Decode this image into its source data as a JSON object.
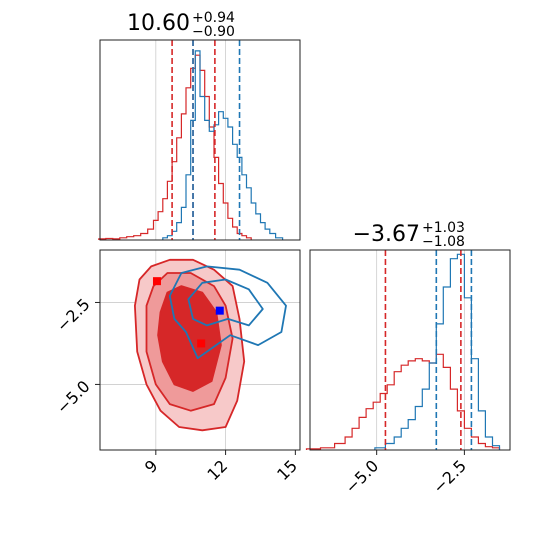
{
  "chart_data": {
    "type": "corner",
    "colors": {
      "red": "#d62728",
      "blue": "#1f77b4",
      "red_fill_mid": "#ef9a9a",
      "red_fill_light": "#f7c9c9"
    },
    "panels": {
      "hist_x": {
        "title": {
          "value": "10.60",
          "plus": "+0.94",
          "minus": "−0.90"
        },
        "xlim": [
          6.6,
          15.2
        ],
        "red_quantiles": [
          9.7,
          10.6,
          11.54
        ],
        "blue_quantiles": [
          10.6,
          12.6
        ],
        "red_hist": [
          {
            "x": 6.7,
            "y": 0.5
          },
          {
            "x": 7.0,
            "y": 0.7
          },
          {
            "x": 7.3,
            "y": 0.5
          },
          {
            "x": 7.6,
            "y": 1
          },
          {
            "x": 7.9,
            "y": 1.5
          },
          {
            "x": 8.2,
            "y": 2
          },
          {
            "x": 8.5,
            "y": 3
          },
          {
            "x": 8.8,
            "y": 5
          },
          {
            "x": 9.0,
            "y": 9
          },
          {
            "x": 9.2,
            "y": 13
          },
          {
            "x": 9.4,
            "y": 19
          },
          {
            "x": 9.6,
            "y": 27
          },
          {
            "x": 9.8,
            "y": 36
          },
          {
            "x": 10.0,
            "y": 47
          },
          {
            "x": 10.2,
            "y": 58
          },
          {
            "x": 10.4,
            "y": 70
          },
          {
            "x": 10.6,
            "y": 79
          },
          {
            "x": 10.8,
            "y": 85
          },
          {
            "x": 11.0,
            "y": 78
          },
          {
            "x": 11.2,
            "y": 66
          },
          {
            "x": 11.4,
            "y": 52
          },
          {
            "x": 11.6,
            "y": 38
          },
          {
            "x": 11.8,
            "y": 26
          },
          {
            "x": 12.0,
            "y": 17
          },
          {
            "x": 12.2,
            "y": 10
          },
          {
            "x": 12.4,
            "y": 6
          },
          {
            "x": 12.6,
            "y": 3
          },
          {
            "x": 12.8,
            "y": 2
          },
          {
            "x": 13.0,
            "y": 1
          }
        ],
        "blue_hist": [
          {
            "x": 9.4,
            "y": 1
          },
          {
            "x": 9.6,
            "y": 2
          },
          {
            "x": 9.8,
            "y": 4
          },
          {
            "x": 10.0,
            "y": 8
          },
          {
            "x": 10.2,
            "y": 15
          },
          {
            "x": 10.4,
            "y": 30
          },
          {
            "x": 10.6,
            "y": 55
          },
          {
            "x": 10.8,
            "y": 87
          },
          {
            "x": 11.0,
            "y": 66
          },
          {
            "x": 11.2,
            "y": 55
          },
          {
            "x": 11.4,
            "y": 50
          },
          {
            "x": 11.6,
            "y": 53
          },
          {
            "x": 11.8,
            "y": 59
          },
          {
            "x": 12.0,
            "y": 56
          },
          {
            "x": 12.2,
            "y": 52
          },
          {
            "x": 12.4,
            "y": 44
          },
          {
            "x": 12.6,
            "y": 38
          },
          {
            "x": 12.8,
            "y": 30
          },
          {
            "x": 13.0,
            "y": 24
          },
          {
            "x": 13.2,
            "y": 17
          },
          {
            "x": 13.4,
            "y": 12
          },
          {
            "x": 13.6,
            "y": 8
          },
          {
            "x": 13.8,
            "y": 5
          },
          {
            "x": 14.0,
            "y": 3
          },
          {
            "x": 14.3,
            "y": 1
          }
        ]
      },
      "hist_y": {
        "title": {
          "value": "−3.67",
          "plus": "+1.03",
          "minus": "−1.08"
        },
        "xlim": [
          -6.9,
          -1.2
        ],
        "xticks": [
          -5.0,
          -2.5
        ],
        "xticklabels": [
          "−5.0",
          "−2.5"
        ],
        "red_quantiles": [
          -4.75,
          -2.6
        ],
        "blue_quantiles": [
          -3.3,
          -2.3
        ],
        "red_hist": [
          {
            "x": -6.8,
            "y": 0.5
          },
          {
            "x": -6.4,
            "y": 1
          },
          {
            "x": -6.0,
            "y": 3
          },
          {
            "x": -5.8,
            "y": 6
          },
          {
            "x": -5.6,
            "y": 10
          },
          {
            "x": -5.4,
            "y": 15
          },
          {
            "x": -5.2,
            "y": 19
          },
          {
            "x": -5.0,
            "y": 22
          },
          {
            "x": -4.8,
            "y": 26
          },
          {
            "x": -4.6,
            "y": 30
          },
          {
            "x": -4.4,
            "y": 36
          },
          {
            "x": -4.2,
            "y": 39
          },
          {
            "x": -4.0,
            "y": 41
          },
          {
            "x": -3.8,
            "y": 42
          },
          {
            "x": -3.6,
            "y": 41
          },
          {
            "x": -3.4,
            "y": 40
          },
          {
            "x": -3.2,
            "y": 44
          },
          {
            "x": -3.0,
            "y": 38
          },
          {
            "x": -2.8,
            "y": 28
          },
          {
            "x": -2.6,
            "y": 18
          },
          {
            "x": -2.4,
            "y": 10
          },
          {
            "x": -2.2,
            "y": 6
          },
          {
            "x": -2.0,
            "y": 3
          },
          {
            "x": -1.8,
            "y": 1.5
          },
          {
            "x": -1.6,
            "y": 1
          }
        ],
        "blue_hist": [
          {
            "x": -4.9,
            "y": 1
          },
          {
            "x": -4.6,
            "y": 3
          },
          {
            "x": -4.4,
            "y": 6
          },
          {
            "x": -4.2,
            "y": 10
          },
          {
            "x": -4.0,
            "y": 14
          },
          {
            "x": -3.8,
            "y": 20
          },
          {
            "x": -3.6,
            "y": 28
          },
          {
            "x": -3.4,
            "y": 40
          },
          {
            "x": -3.2,
            "y": 58
          },
          {
            "x": -3.0,
            "y": 75
          },
          {
            "x": -2.8,
            "y": 88
          },
          {
            "x": -2.6,
            "y": 90
          },
          {
            "x": -2.4,
            "y": 70
          },
          {
            "x": -2.2,
            "y": 42
          },
          {
            "x": -2.0,
            "y": 18
          },
          {
            "x": -1.8,
            "y": 6
          },
          {
            "x": -1.6,
            "y": 2
          }
        ]
      },
      "scatter2d": {
        "xlim": [
          6.6,
          15.2
        ],
        "ylim": [
          -7.0,
          -0.9
        ],
        "xticks": [
          9,
          12,
          15
        ],
        "xticklabels": [
          "9",
          "12",
          "15"
        ],
        "yticks": [
          -2.5,
          -5.0
        ],
        "yticklabels": [
          "−2.5",
          "−5.0"
        ],
        "grid_x": [
          9,
          12
        ],
        "grid_y": [
          -2.5,
          -5.0
        ],
        "red_contours": [
          {
            "level": "outer",
            "points": [
              [
                8.1,
                -2.6
              ],
              [
                8.3,
                -1.8
              ],
              [
                8.8,
                -1.4
              ],
              [
                9.6,
                -1.2
              ],
              [
                10.6,
                -1.2
              ],
              [
                11.5,
                -1.5
              ],
              [
                12.3,
                -2.0
              ],
              [
                12.6,
                -3.0
              ],
              [
                12.8,
                -4.3
              ],
              [
                12.5,
                -5.5
              ],
              [
                12.0,
                -6.3
              ],
              [
                11.0,
                -6.4
              ],
              [
                10.0,
                -6.3
              ],
              [
                9.2,
                -5.8
              ],
              [
                8.6,
                -5.0
              ],
              [
                8.2,
                -4.0
              ]
            ]
          },
          {
            "level": "mid",
            "points": [
              [
                8.6,
                -2.6
              ],
              [
                8.9,
                -2.0
              ],
              [
                9.5,
                -1.6
              ],
              [
                10.5,
                -1.6
              ],
              [
                11.5,
                -2.0
              ],
              [
                12.0,
                -2.6
              ],
              [
                12.3,
                -3.6
              ],
              [
                12.0,
                -4.8
              ],
              [
                11.5,
                -5.6
              ],
              [
                10.5,
                -5.8
              ],
              [
                9.6,
                -5.6
              ],
              [
                9.0,
                -5.0
              ],
              [
                8.6,
                -4.0
              ]
            ]
          },
          {
            "level": "inner",
            "points": [
              [
                9.2,
                -2.8
              ],
              [
                9.5,
                -2.2
              ],
              [
                10.1,
                -2.0
              ],
              [
                11.0,
                -2.2
              ],
              [
                11.6,
                -2.8
              ],
              [
                11.8,
                -3.8
              ],
              [
                11.4,
                -4.9
              ],
              [
                10.6,
                -5.2
              ],
              [
                9.8,
                -5.0
              ],
              [
                9.3,
                -4.3
              ],
              [
                9.1,
                -3.5
              ]
            ]
          }
        ],
        "blue_contours": [
          {
            "level": "outer",
            "points": [
              [
                9.6,
                -2.3
              ],
              [
                10.1,
                -1.6
              ],
              [
                11.2,
                -1.4
              ],
              [
                12.6,
                -1.5
              ],
              [
                13.8,
                -1.9
              ],
              [
                14.6,
                -2.6
              ],
              [
                14.4,
                -3.4
              ],
              [
                13.4,
                -3.8
              ],
              [
                12.2,
                -3.5
              ],
              [
                11.4,
                -3.9
              ],
              [
                10.8,
                -4.2
              ],
              [
                10.3,
                -3.4
              ],
              [
                9.8,
                -3.0
              ]
            ]
          },
          {
            "level": "inner",
            "points": [
              [
                10.4,
                -2.4
              ],
              [
                11.0,
                -1.9
              ],
              [
                12.0,
                -1.8
              ],
              [
                13.0,
                -2.1
              ],
              [
                13.6,
                -2.7
              ],
              [
                13.0,
                -3.2
              ],
              [
                12.1,
                -3.0
              ],
              [
                11.2,
                -3.2
              ],
              [
                10.6,
                -3.0
              ]
            ]
          }
        ],
        "markers": [
          {
            "color": "red",
            "x": 9.05,
            "y": -1.85
          },
          {
            "color": "red",
            "x": 10.95,
            "y": -3.75
          },
          {
            "color": "blue",
            "x": 11.75,
            "y": -2.75
          }
        ]
      }
    }
  }
}
